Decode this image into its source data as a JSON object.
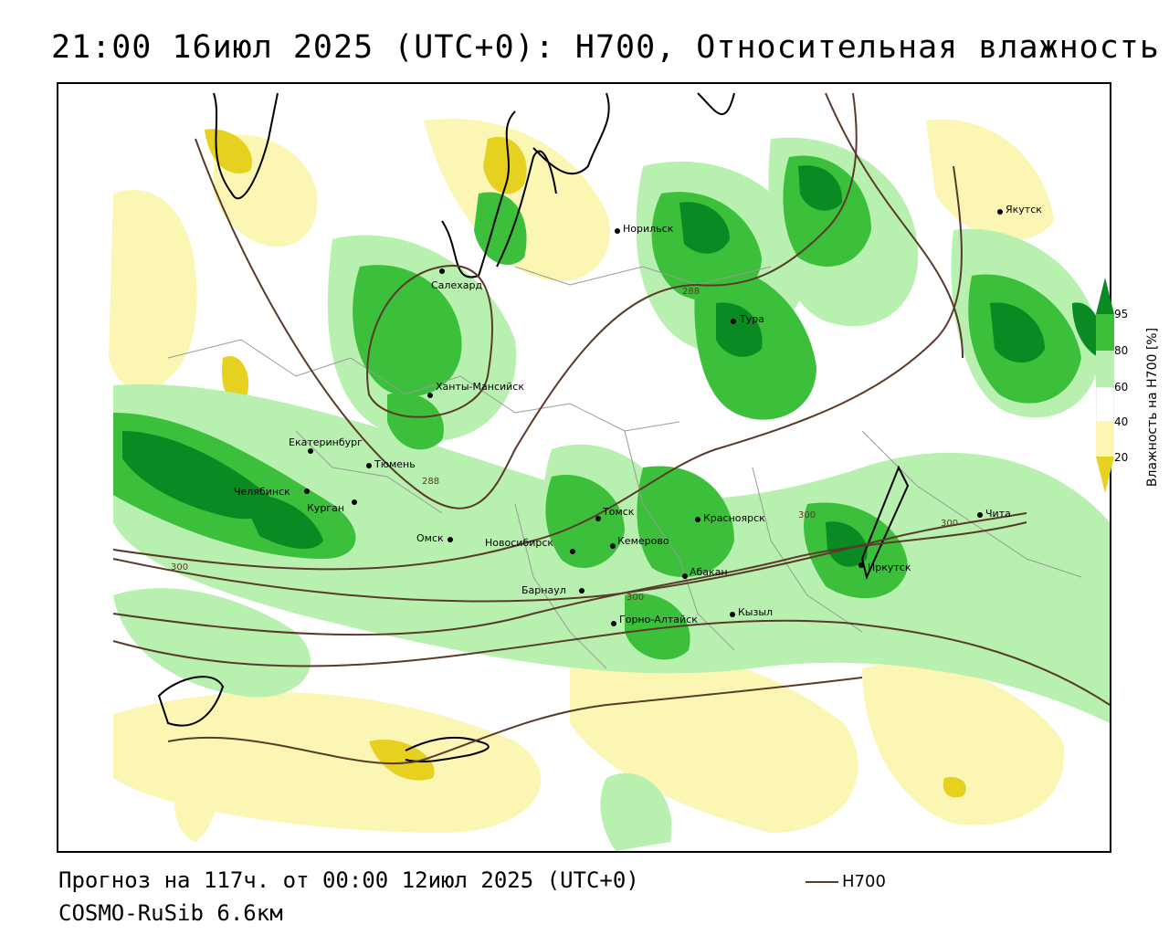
{
  "title": "21:00 16июл 2025 (UTC+0): H700, Относительная влажность",
  "footer": {
    "forecast": "Прогноз на 117ч. от 00:00 12июл 2025 (UTC+0)",
    "model": "COSMO-RuSib 6.6км",
    "contour_legend": "H700"
  },
  "colorbar": {
    "title": "Влажность на H700 [%]",
    "ticks": [
      "95",
      "80",
      "60",
      "40",
      "20"
    ],
    "colors": {
      "dark_green": "#0a8a22",
      "green": "#3cc03c",
      "light_green": "#b8f0b0",
      "white": "#ffffff",
      "light_yellow": "#fbf6b4",
      "yellow": "#e6d020"
    }
  },
  "contour_values": [
    "288",
    "288",
    "300",
    "300",
    "300",
    "300"
  ],
  "cities": [
    {
      "name": "Норильск"
    },
    {
      "name": "Якутск"
    },
    {
      "name": "Салехард"
    },
    {
      "name": "Тура"
    },
    {
      "name": "Ханты-Мансийск"
    },
    {
      "name": "Екатеринбург"
    },
    {
      "name": "Тюмень"
    },
    {
      "name": "Челябинск"
    },
    {
      "name": "Курган"
    },
    {
      "name": "Омск"
    },
    {
      "name": "Новосибирск"
    },
    {
      "name": "Томск"
    },
    {
      "name": "Красноярск"
    },
    {
      "name": "Кемерово"
    },
    {
      "name": "Абакан"
    },
    {
      "name": "Барнаул"
    },
    {
      "name": "Горно-Алтайск"
    },
    {
      "name": "Кызыл"
    },
    {
      "name": "Иркутск"
    },
    {
      "name": "Чита"
    }
  ]
}
